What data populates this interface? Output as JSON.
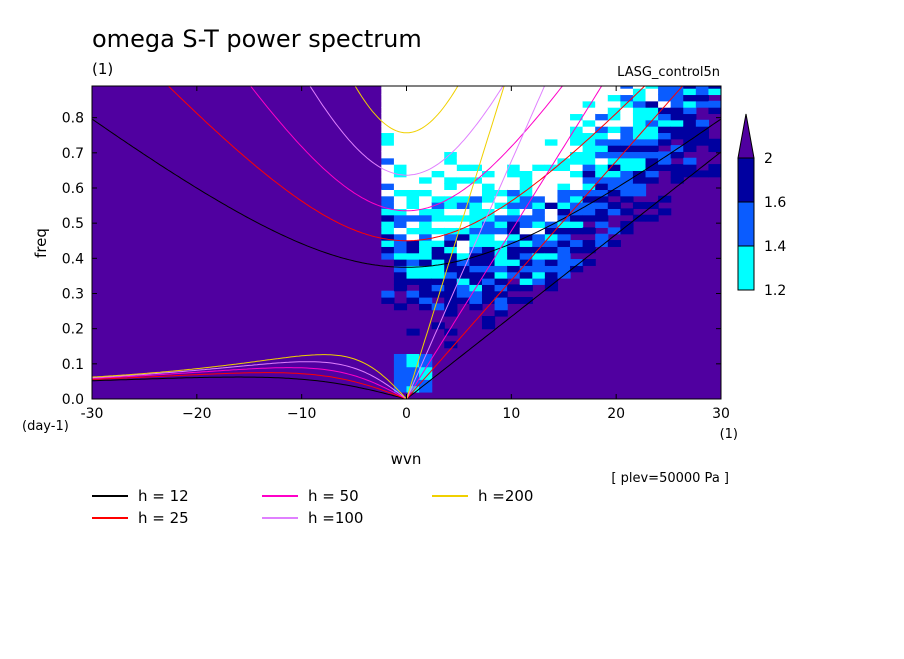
{
  "chart_data": {
    "type": "contour",
    "title": "omega S-T power spectrum",
    "units": "(1)",
    "dataset": "LASG_control5n",
    "xlabel": "wvn",
    "x_units": "(1)",
    "ylabel": "freq",
    "y_units": "(day-1)",
    "level_note": "[ plev=50000 Pa ]",
    "xlim": [
      -30,
      30
    ],
    "ylim": [
      0,
      0.89
    ],
    "x_ticks": [
      -30,
      -20,
      -10,
      0,
      10,
      20,
      30
    ],
    "x_tick_labels": [
      "-30",
      "−20",
      "−10",
      "0",
      "10",
      "20",
      "30"
    ],
    "y_ticks": [
      0.0,
      0.1,
      0.2,
      0.3,
      0.4,
      0.5,
      0.6,
      0.7,
      0.8
    ],
    "y_tick_labels": [
      "0.0",
      "0.1",
      "0.2",
      "0.3",
      "0.4",
      "0.5",
      "0.6",
      "0.7",
      "0.8"
    ],
    "colorbar": {
      "levels": [
        "1.2",
        "1.4",
        "1.6",
        "2"
      ],
      "colors": [
        "#00ffff",
        "#0a5cff",
        "#0000a0",
        "#5000a0"
      ],
      "background": "#5000a0",
      "light_fill": "#ffffff"
    },
    "dispersion_curves": [
      {
        "h": 12,
        "label": "h = 12",
        "color": "#000000"
      },
      {
        "h": 25,
        "label": "h = 25",
        "color": "#ff0000"
      },
      {
        "h": 50,
        "label": "h = 50",
        "color": "#ff00c8"
      },
      {
        "h": 100,
        "label": "h =100",
        "color": "#e080ff"
      },
      {
        "h": 200,
        "label": "h =200",
        "color": "#f0d000"
      }
    ],
    "legend_position": "below plot"
  }
}
